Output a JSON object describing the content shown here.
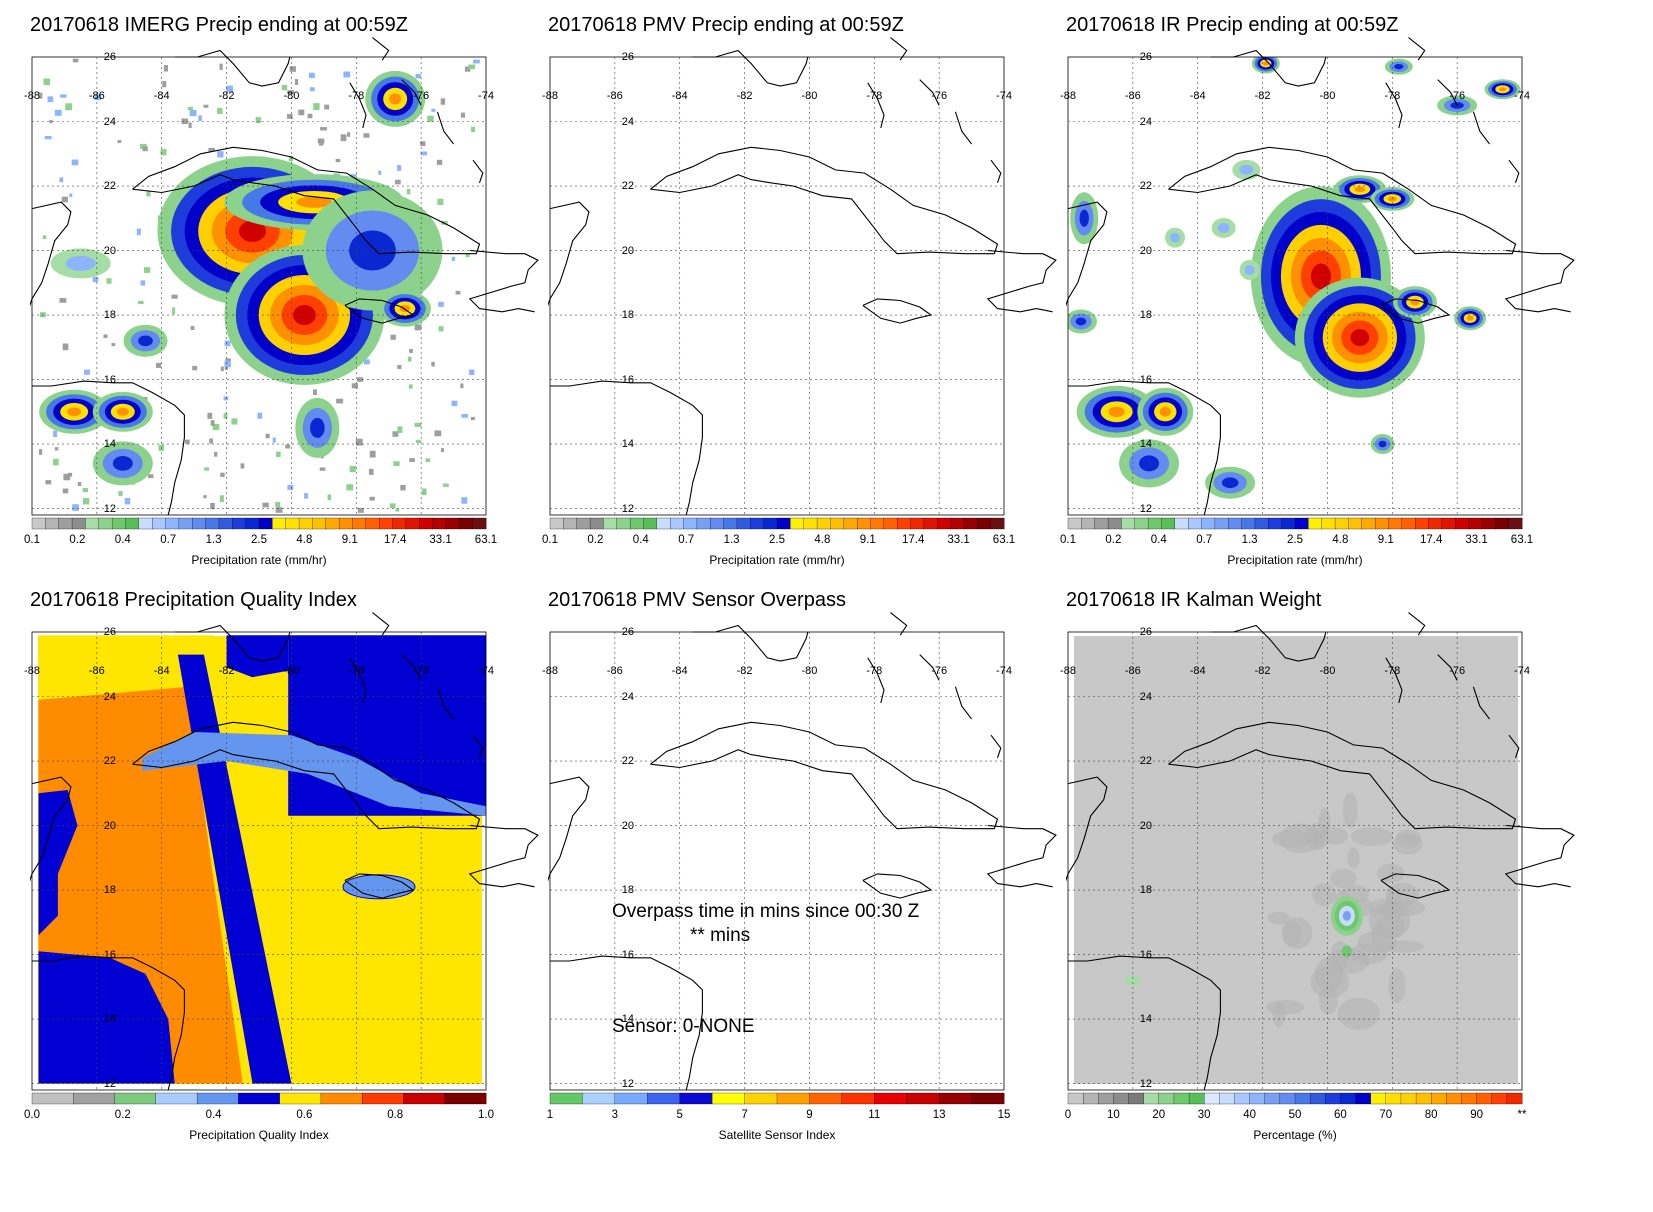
{
  "map": {
    "lon_ticks": [
      "-88",
      "-86",
      "-84",
      "-82",
      "-80",
      "-78",
      "-76",
      "-74"
    ],
    "lat_ticks": [
      "26",
      "24",
      "22",
      "20",
      "18",
      "16",
      "14",
      "12"
    ]
  },
  "panels": [
    {
      "id": "imerg",
      "title": "20170618 IMERG Precip ending at 00:59Z",
      "shading": "precip-imerg",
      "colorbar": {
        "title": "Precipitation rate (mm/hr)",
        "labels": [
          "0.1",
          "0.2",
          "0.4",
          "0.7",
          "1.3",
          "2.5",
          "4.8",
          "9.1",
          "17.4",
          "33.1",
          "63.1"
        ],
        "colors": [
          "#c8c8c8",
          "#b4b4b4",
          "#9e9e9e",
          "#8c8c8c",
          "#a6dca6",
          "#8cd28c",
          "#6ec86e",
          "#58be58",
          "#c8dcff",
          "#aac8ff",
          "#8cb4ff",
          "#78a0f0",
          "#648cf0",
          "#4678e6",
          "#325adc",
          "#1e3cdc",
          "#0a28d2",
          "#0000c8",
          "#fff000",
          "#ffe000",
          "#ffd000",
          "#ffc000",
          "#ffa800",
          "#ff9000",
          "#ff7800",
          "#ff6000",
          "#ff4000",
          "#f02800",
          "#e01400",
          "#d00000",
          "#b40000",
          "#960000",
          "#7a0000",
          "#6a1010"
        ]
      }
    },
    {
      "id": "pmv",
      "title": "20170618 PMV Precip ending at 00:59Z",
      "shading": "none",
      "colorbar": {
        "title": "Precipitation rate (mm/hr)",
        "labels": [
          "0.1",
          "0.2",
          "0.4",
          "0.7",
          "1.3",
          "2.5",
          "4.8",
          "9.1",
          "17.4",
          "33.1",
          "63.1"
        ],
        "colors": [
          "#c8c8c8",
          "#b4b4b4",
          "#9e9e9e",
          "#8c8c8c",
          "#a6dca6",
          "#8cd28c",
          "#6ec86e",
          "#58be58",
          "#c8dcff",
          "#aac8ff",
          "#8cb4ff",
          "#78a0f0",
          "#648cf0",
          "#4678e6",
          "#325adc",
          "#1e3cdc",
          "#0a28d2",
          "#0000c8",
          "#fff000",
          "#ffe000",
          "#ffd000",
          "#ffc000",
          "#ffa800",
          "#ff9000",
          "#ff7800",
          "#ff6000",
          "#ff4000",
          "#f02800",
          "#e01400",
          "#d00000",
          "#b40000",
          "#960000",
          "#7a0000",
          "#6a1010"
        ]
      }
    },
    {
      "id": "ir",
      "title": "20170618 IR Precip ending at 00:59Z",
      "shading": "precip-ir",
      "colorbar": {
        "title": "Precipitation rate (mm/hr)",
        "labels": [
          "0.1",
          "0.2",
          "0.4",
          "0.7",
          "1.3",
          "2.5",
          "4.8",
          "9.1",
          "17.4",
          "33.1",
          "63.1"
        ],
        "colors": [
          "#c8c8c8",
          "#b4b4b4",
          "#9e9e9e",
          "#8c8c8c",
          "#a6dca6",
          "#8cd28c",
          "#6ec86e",
          "#58be58",
          "#c8dcff",
          "#aac8ff",
          "#8cb4ff",
          "#78a0f0",
          "#648cf0",
          "#4678e6",
          "#325adc",
          "#1e3cdc",
          "#0a28d2",
          "#0000c8",
          "#fff000",
          "#ffe000",
          "#ffd000",
          "#ffc000",
          "#ffa800",
          "#ff9000",
          "#ff7800",
          "#ff6000",
          "#ff4000",
          "#f02800",
          "#e01400",
          "#d00000",
          "#b40000",
          "#960000",
          "#7a0000",
          "#6a1010"
        ]
      }
    },
    {
      "id": "qi",
      "title": "20170618 Precipitation Quality Index",
      "shading": "quality",
      "colorbar": {
        "title": "Precipitation Quality Index",
        "labels": [
          "0.0",
          "0.2",
          "0.4",
          "0.6",
          "0.8",
          "1.0"
        ],
        "colors": [
          "#c0c0c0",
          "#a0a0a0",
          "#7cc87c",
          "#a8ccff",
          "#6496f0",
          "#0000d2",
          "#ffe600",
          "#ff8c00",
          "#ff3c00",
          "#c80000",
          "#7a0000"
        ]
      }
    },
    {
      "id": "sensor",
      "title": "20170618 PMV Sensor Overpass",
      "shading": "none",
      "annotations": {
        "line1": "Overpass time in mins since 00:30 Z",
        "line2": "** mins",
        "line3": "Sensor:  0-NONE"
      },
      "colorbar": {
        "title": "Satellite Sensor Index",
        "labels": [
          "1",
          "3",
          "5",
          "7",
          "9",
          "11",
          "13",
          "15"
        ],
        "colors": [
          "#64c864",
          "#a8d2ff",
          "#78aaff",
          "#3c64f0",
          "#0a0ad2",
          "#ffff00",
          "#ffd200",
          "#ffa000",
          "#ff6400",
          "#ff3200",
          "#e60000",
          "#c80000",
          "#960000",
          "#7a0000"
        ]
      }
    },
    {
      "id": "kalman",
      "title": "20170618 IR Kalman Weight",
      "shading": "kalman",
      "colorbar": {
        "title": "Percentage (%)",
        "labels": [
          "0",
          "10",
          "20",
          "30",
          "40",
          "50",
          "60",
          "70",
          "80",
          "90",
          "**"
        ],
        "colors": [
          "#c8c8c8",
          "#b4b4b4",
          "#9e9e9e",
          "#8c8c8c",
          "#7a7a7a",
          "#a6dca6",
          "#8cd28c",
          "#6ec86e",
          "#58be58",
          "#dce8ff",
          "#c8dcff",
          "#aac8ff",
          "#8cb4ff",
          "#78a0f0",
          "#648cf0",
          "#4678e6",
          "#325adc",
          "#1e3cdc",
          "#0a28d2",
          "#0000c8",
          "#fff000",
          "#ffe000",
          "#ffd000",
          "#ffc000",
          "#ffa800",
          "#ff9000",
          "#ff7800",
          "#ff6000",
          "#ff4000",
          "#f02800"
        ]
      }
    }
  ]
}
